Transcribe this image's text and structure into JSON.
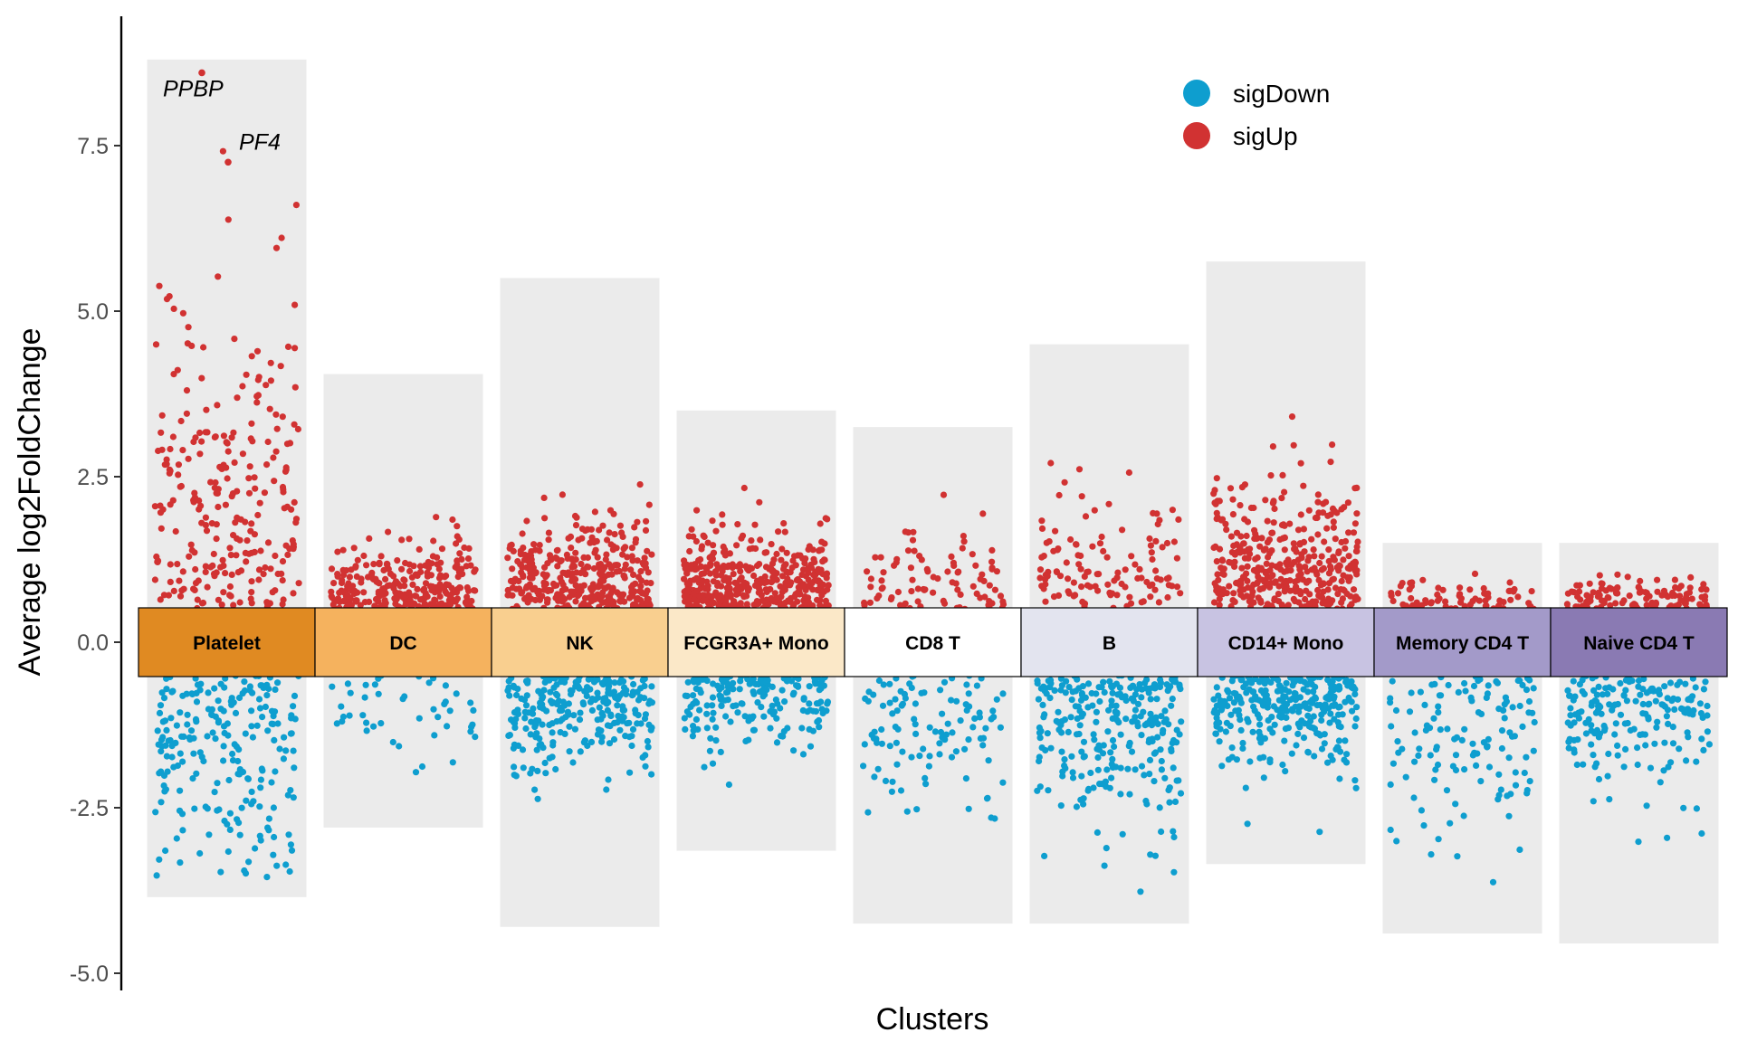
{
  "chart_data": {
    "type": "scatter",
    "title": "",
    "xlabel": "Clusters",
    "ylabel": "Average log2FoldChange",
    "ylim": [
      -5.2,
      8.9
    ],
    "yticks": [
      -5.0,
      -2.5,
      0.0,
      2.5,
      5.0,
      7.5
    ],
    "ytick_labels": [
      "-5.0",
      "-2.5",
      "0.0",
      "2.5",
      "5.0",
      "7.5"
    ],
    "legend": {
      "position": "top-right",
      "entries": [
        {
          "name": "sigDown",
          "color": "#0e9ecf"
        },
        {
          "name": "sigUp",
          "color": "#d13232"
        }
      ]
    },
    "threshold": 0.5,
    "clusters": [
      {
        "name": "Platelet",
        "color": "#e08a22",
        "up_max": 8.8,
        "down_min": -3.85,
        "n_up": 260,
        "n_down": 220,
        "up_mean": 2.6,
        "down_mean": -2.0
      },
      {
        "name": "DC",
        "color": "#f5b25e",
        "up_max": 4.05,
        "down_min": -2.8,
        "n_up": 280,
        "n_down": 45,
        "up_mean": 0.9,
        "down_mean": -1.1
      },
      {
        "name": "NK",
        "color": "#f9cf8f",
        "up_max": 5.5,
        "down_min": -4.3,
        "n_up": 360,
        "n_down": 260,
        "up_mean": 1.1,
        "down_mean": -1.1
      },
      {
        "name": "FCGR3A+ Mono",
        "color": "#fbe8c8",
        "up_max": 3.5,
        "down_min": -3.15,
        "n_up": 420,
        "n_down": 180,
        "up_mean": 1.0,
        "down_mean": -1.0
      },
      {
        "name": "CD8 T",
        "color": "#ffffff",
        "up_max": 3.25,
        "down_min": -4.25,
        "n_up": 90,
        "n_down": 110,
        "up_mean": 1.0,
        "down_mean": -1.5
      },
      {
        "name": "B",
        "color": "#e3e4ef",
        "up_max": 4.5,
        "down_min": -4.25,
        "n_up": 120,
        "n_down": 280,
        "up_mean": 1.3,
        "down_mean": -1.5
      },
      {
        "name": "CD14+ Mono",
        "color": "#c8c3e2",
        "up_max": 5.75,
        "down_min": -3.35,
        "n_up": 380,
        "n_down": 300,
        "up_mean": 1.3,
        "down_mean": -1.1
      },
      {
        "name": "Memory CD4 T",
        "color": "#a39ac9",
        "up_max": 1.5,
        "down_min": -4.4,
        "n_up": 70,
        "n_down": 130,
        "up_mean": 0.7,
        "down_mean": -1.6
      },
      {
        "name": "Naive CD4 T",
        "color": "#8a7ab3",
        "up_max": 1.5,
        "down_min": -4.55,
        "n_up": 120,
        "n_down": 190,
        "up_mean": 0.7,
        "down_mean": -1.3
      }
    ],
    "annotations": [
      {
        "text": "PPBP",
        "cluster": "Platelet",
        "y": 8.6
      },
      {
        "text": "PF4",
        "cluster": "Platelet",
        "y": 7.25
      }
    ]
  }
}
